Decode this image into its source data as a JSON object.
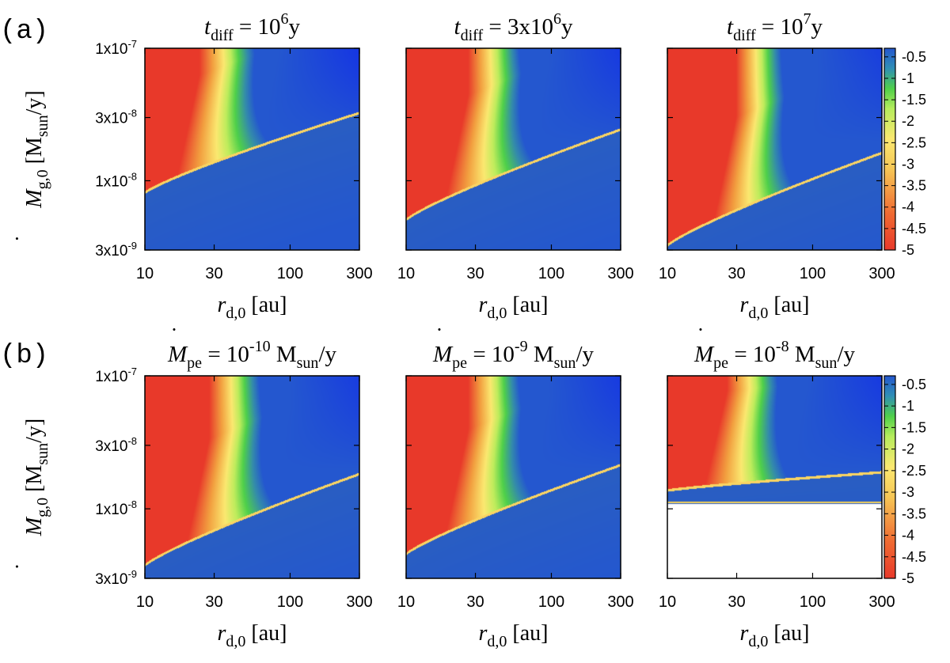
{
  "figure": {
    "rows": [
      {
        "label": "(a)",
        "row": 0
      },
      {
        "label": "(b)",
        "row": 1
      }
    ]
  },
  "colors": {
    "red": "#e8392a",
    "orange": "#f2a040",
    "yellow": "#fbe870",
    "green": "#4fd04a",
    "blue": "#2457cf",
    "blue_bright": "#0b1ef2"
  },
  "chart_data": [
    {
      "type": "heatmap",
      "row": "(a)",
      "panel": 1,
      "title": {
        "pre": "t",
        "sub": "diff",
        "mid": " = 10",
        "sup": "6",
        "post": "y"
      },
      "xlabel": {
        "pre": "r",
        "sub": "d,0",
        "post": " [au]"
      },
      "ylabel": {
        "dot": "·",
        "pre": "M",
        "sub": "g,0",
        "post": " [M",
        "sub2": "sun",
        "post2": "/y]"
      },
      "x_scale": "log",
      "xlim": [
        10,
        300
      ],
      "xticks": [
        "10",
        "30",
        "100",
        "300"
      ],
      "y_scale": "log",
      "ylim": [
        3e-09,
        1e-07
      ],
      "yticks": [
        "1x10-7",
        "3x10-8",
        "1x10-8",
        "3x10-9"
      ],
      "boundary_y_at_x10": 8e-09,
      "boundary_y_at_x300": 3.2e-08,
      "red_edge_x": 24,
      "band_width_factor": 2.6,
      "white_below": null
    },
    {
      "type": "heatmap",
      "row": "(a)",
      "panel": 2,
      "title": {
        "pre": "t",
        "sub": "diff",
        "mid": " = 3x10",
        "sup": "6",
        "post": "y"
      },
      "xlabel": {
        "pre": "r",
        "sub": "d,0",
        "post": " [au]"
      },
      "x_scale": "log",
      "xlim": [
        10,
        300
      ],
      "xticks": [
        "10",
        "30",
        "100",
        "300"
      ],
      "y_scale": "log",
      "ylim": [
        3e-09,
        1e-07
      ],
      "boundary_y_at_x10": 5e-09,
      "boundary_y_at_x300": 2.4e-08,
      "red_edge_x": 27,
      "band_width_factor": 2.5,
      "white_below": null
    },
    {
      "type": "heatmap",
      "row": "(a)",
      "panel": 3,
      "title": {
        "pre": "t",
        "sub": "diff",
        "mid": " = 10",
        "sup": "7",
        "post": "y"
      },
      "xlabel": {
        "pre": "r",
        "sub": "d,0",
        "post": " [au]"
      },
      "x_scale": "log",
      "xlim": [
        10,
        300
      ],
      "xticks": [
        "10",
        "30",
        "100",
        "300"
      ],
      "y_scale": "log",
      "ylim": [
        3e-09,
        1e-07
      ],
      "boundary_y_at_x10": 3.2e-09,
      "boundary_y_at_x300": 1.6e-08,
      "red_edge_x": 30,
      "band_width_factor": 2.3,
      "white_below": null
    },
    {
      "type": "heatmap",
      "row": "(b)",
      "panel": 1,
      "title": {
        "dot": "·",
        "pre": "M",
        "sub": "pe",
        "mid": " = 10",
        "sup": "-10",
        "post": " M",
        "sub2": "sun",
        "post2": "/y"
      },
      "xlabel": {
        "pre": "r",
        "sub": "d,0",
        "post": " [au]"
      },
      "ylabel": {
        "dot": "·",
        "pre": "M",
        "sub": "g,0",
        "post": " [M",
        "sub2": "sun",
        "post2": "/y]"
      },
      "x_scale": "log",
      "xlim": [
        10,
        300
      ],
      "xticks": [
        "10",
        "30",
        "100",
        "300"
      ],
      "y_scale": "log",
      "ylim": [
        3e-09,
        1e-07
      ],
      "yticks": [
        "1x10-7",
        "3x10-8",
        "1x10-8",
        "3x10-9"
      ],
      "boundary_y_at_x10": 3.7e-09,
      "boundary_y_at_x300": 1.8e-08,
      "red_edge_x": 28,
      "band_width_factor": 2.5,
      "white_below": null
    },
    {
      "type": "heatmap",
      "row": "(b)",
      "panel": 2,
      "title": {
        "dot": "·",
        "pre": "M",
        "sub": "pe",
        "mid": " = 10",
        "sup": "-9",
        "post": " M",
        "sub2": "sun",
        "post2": "/y"
      },
      "xlabel": {
        "pre": "r",
        "sub": "d,0",
        "post": " [au]"
      },
      "x_scale": "log",
      "xlim": [
        10,
        300
      ],
      "xticks": [
        "10",
        "30",
        "100",
        "300"
      ],
      "y_scale": "log",
      "ylim": [
        3e-09,
        1e-07
      ],
      "boundary_y_at_x10": 4.5e-09,
      "boundary_y_at_x300": 2.1e-08,
      "red_edge_x": 27,
      "band_width_factor": 2.5,
      "white_below": null
    },
    {
      "type": "heatmap",
      "row": "(b)",
      "panel": 3,
      "title": {
        "dot": "·",
        "pre": "M",
        "sub": "pe",
        "mid": " = 10",
        "sup": "-8",
        "post": " M",
        "sub2": "sun",
        "post2": "/y"
      },
      "xlabel": {
        "pre": "r",
        "sub": "d,0",
        "post": " [au]"
      },
      "x_scale": "log",
      "xlim": [
        10,
        300
      ],
      "xticks": [
        "10",
        "30",
        "100",
        "300"
      ],
      "y_scale": "log",
      "ylim": [
        3e-09,
        1e-07
      ],
      "boundary_y_at_x10": 1.35e-08,
      "boundary_y_at_x300": 1.85e-08,
      "red_edge_x": 26,
      "band_width_factor": 2.4,
      "white_below": 1.1e-08
    }
  ],
  "colorbar": {
    "ticks": [
      "-0.5",
      "-1",
      "-1.5",
      "-2",
      "-2.5",
      "-3",
      "-3.5",
      "-4",
      "-4.5",
      "-5"
    ],
    "range": [
      -5,
      -0.3
    ]
  }
}
